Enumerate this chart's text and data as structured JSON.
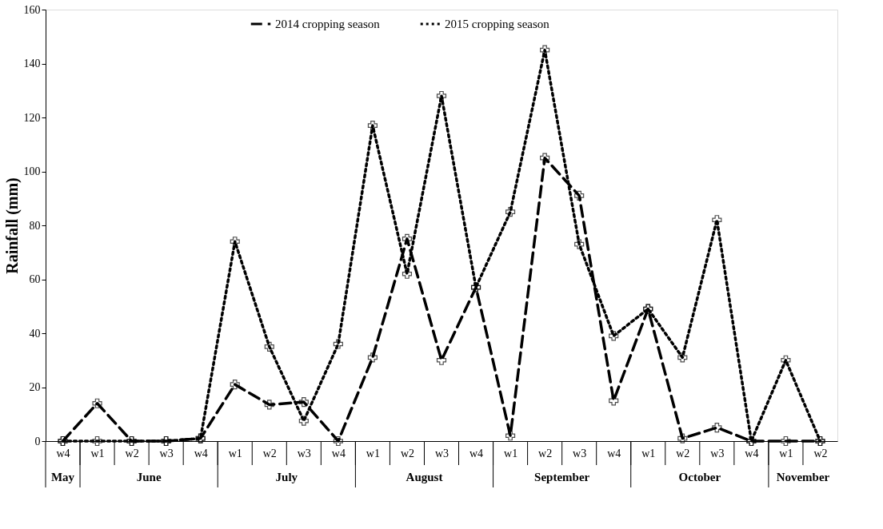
{
  "chart_data": {
    "type": "line",
    "ylabel": "Rainfall (mm)",
    "categories": [
      "w4",
      "w1",
      "w2",
      "w3",
      "w4",
      "w1",
      "w2",
      "w3",
      "w4",
      "w1",
      "w2",
      "w3",
      "w4",
      "w1",
      "w2",
      "w3",
      "w4",
      "w1",
      "w2",
      "w3",
      "w4",
      "w1",
      "w2"
    ],
    "annotations": [
      "May",
      "June",
      "July",
      "August",
      "September",
      "October",
      "November"
    ],
    "series": [
      {
        "name": "2014 cropping  season",
        "color": "#000000",
        "line_style": "dashed",
        "values": [
          0,
          14,
          0,
          0,
          1,
          21,
          13.5,
          14.5,
          0,
          31,
          75,
          30,
          57,
          2,
          105,
          91,
          15,
          49,
          1,
          5,
          0,
          0,
          0
        ]
      },
      {
        "name": "2015 cropping  season",
        "color": "#000000",
        "line_style": "dotted",
        "values": [
          0,
          0,
          0,
          0,
          1,
          74,
          35,
          7.5,
          36,
          117,
          62,
          128,
          57,
          85,
          145,
          73,
          39,
          49,
          31,
          82,
          0,
          30,
          0
        ]
      }
    ],
    "ylim": [
      0,
      160
    ],
    "yticks": [
      0,
      20,
      40,
      60,
      80,
      100,
      120,
      140,
      160
    ],
    "grid": false,
    "legend": "top",
    "marker": "cross"
  }
}
